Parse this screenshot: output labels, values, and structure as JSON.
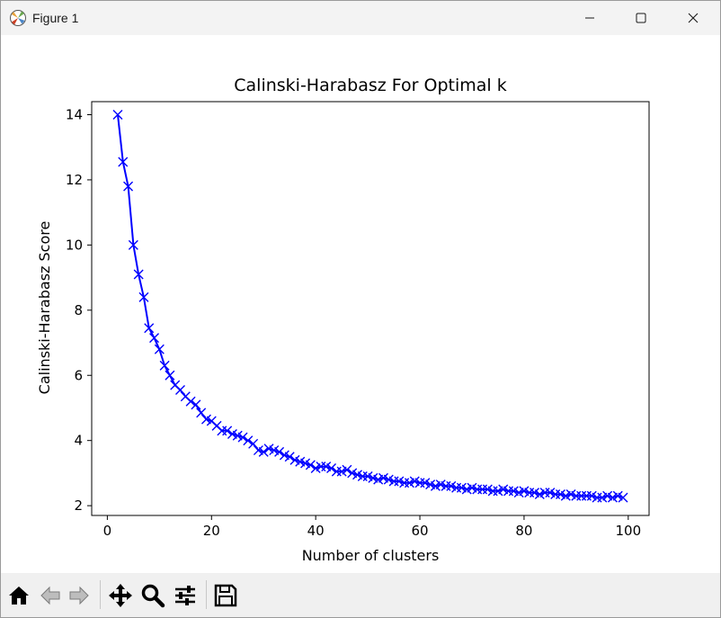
{
  "window": {
    "title": "Figure 1",
    "icons": {
      "app": "matplotlib-figure-icon",
      "minimize": "minimize-icon",
      "maximize": "maximize-icon",
      "close": "close-icon"
    }
  },
  "toolbar": {
    "buttons": [
      {
        "name": "home-button",
        "icon": "home-icon",
        "enabled": true
      },
      {
        "name": "back-button",
        "icon": "arrow-left-icon",
        "enabled": false
      },
      {
        "name": "forward-button",
        "icon": "arrow-right-icon",
        "enabled": false
      },
      {
        "name": "pan-button",
        "icon": "move-arrows-icon",
        "enabled": true
      },
      {
        "name": "zoom-button",
        "icon": "magnifier-icon",
        "enabled": true
      },
      {
        "name": "configure-subplots-button",
        "icon": "sliders-icon",
        "enabled": true
      },
      {
        "name": "save-button",
        "icon": "floppy-disk-icon",
        "enabled": true
      }
    ]
  },
  "chart_data": {
    "type": "line",
    "title": "Calinski-Harabasz For Optimal k",
    "xlabel": "Number of clusters",
    "ylabel": "Calinski-Harabasz Score",
    "xlim": [
      -3,
      104
    ],
    "ylim": [
      1.7,
      14.4
    ],
    "xticks": [
      0,
      20,
      40,
      60,
      80,
      100
    ],
    "yticks": [
      2,
      4,
      6,
      8,
      10,
      12,
      14
    ],
    "grid": false,
    "legend": null,
    "series": [
      {
        "color": "#0000ff",
        "marker": "x",
        "x": [
          2,
          3,
          4,
          5,
          6,
          7,
          8,
          9,
          10,
          11,
          12,
          13,
          14,
          15,
          16,
          17,
          18,
          19,
          20,
          21,
          22,
          23,
          24,
          25,
          26,
          27,
          28,
          29,
          30,
          31,
          32,
          33,
          34,
          35,
          36,
          37,
          38,
          39,
          40,
          41,
          42,
          43,
          44,
          45,
          46,
          47,
          48,
          49,
          50,
          51,
          52,
          53,
          54,
          55,
          56,
          57,
          58,
          59,
          60,
          61,
          62,
          63,
          64,
          65,
          66,
          67,
          68,
          69,
          70,
          71,
          72,
          73,
          74,
          75,
          76,
          77,
          78,
          79,
          80,
          81,
          82,
          83,
          84,
          85,
          86,
          87,
          88,
          89,
          90,
          91,
          92,
          93,
          94,
          95,
          96,
          97,
          98,
          99
        ],
        "y": [
          14.0,
          12.55,
          11.8,
          10.0,
          9.1,
          8.4,
          7.45,
          7.15,
          6.8,
          6.3,
          6.0,
          5.7,
          5.55,
          5.35,
          5.2,
          5.1,
          4.85,
          4.65,
          4.6,
          4.45,
          4.3,
          4.3,
          4.2,
          4.15,
          4.1,
          4.0,
          3.9,
          3.7,
          3.65,
          3.75,
          3.7,
          3.65,
          3.55,
          3.5,
          3.4,
          3.35,
          3.3,
          3.25,
          3.15,
          3.2,
          3.2,
          3.15,
          3.05,
          3.05,
          3.1,
          3.0,
          2.95,
          2.9,
          2.9,
          2.85,
          2.8,
          2.85,
          2.8,
          2.75,
          2.75,
          2.7,
          2.7,
          2.75,
          2.7,
          2.7,
          2.65,
          2.6,
          2.65,
          2.6,
          2.6,
          2.55,
          2.55,
          2.5,
          2.55,
          2.5,
          2.5,
          2.5,
          2.45,
          2.45,
          2.5,
          2.45,
          2.45,
          2.4,
          2.45,
          2.4,
          2.4,
          2.35,
          2.4,
          2.4,
          2.35,
          2.35,
          2.3,
          2.35,
          2.3,
          2.3,
          2.3,
          2.3,
          2.25,
          2.25,
          2.3,
          2.25,
          2.3,
          2.25
        ]
      }
    ]
  }
}
